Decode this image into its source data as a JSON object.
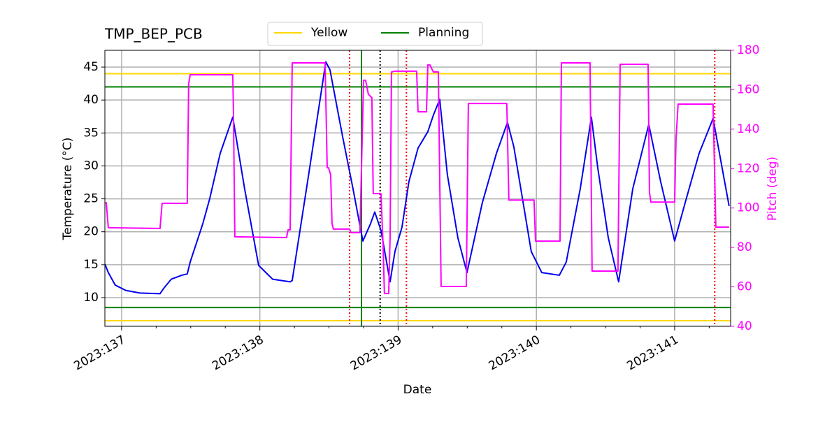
{
  "chart_data": {
    "type": "line",
    "title": "TMP_BEP_PCB",
    "xlabel": "Date",
    "ylabel": "Temperature (°C)",
    "y2label": "Pitch (deg)",
    "y2color": "#ff00ff",
    "xlim": [
      136.879,
      141.405
    ],
    "xticks": [
      {
        "value": 137,
        "label": "2023:137"
      },
      {
        "value": 138,
        "label": "2023:138"
      },
      {
        "value": 139,
        "label": "2023:139"
      },
      {
        "value": 140,
        "label": "2023:140"
      },
      {
        "value": 141,
        "label": "2023:141"
      }
    ],
    "xminorticks": [
      137.25,
      137.5,
      137.75,
      138.25,
      138.5,
      138.75,
      139.25,
      139.5,
      139.75,
      140.25,
      140.5,
      140.75,
      141.25
    ],
    "ylim": [
      5.65,
      47.55
    ],
    "yticks": [
      10,
      15,
      20,
      25,
      30,
      35,
      40,
      45
    ],
    "y2lim": [
      40,
      180
    ],
    "y2ticks": [
      40,
      60,
      80,
      100,
      120,
      140,
      160,
      180
    ],
    "grid": true,
    "hlines": [
      {
        "name": "Yellow",
        "color": "#ffd700",
        "values": [
          44,
          6.5
        ]
      },
      {
        "name": "Planning",
        "color": "#008000",
        "values": [
          42,
          8.5
        ]
      }
    ],
    "vlines": [
      {
        "color": "#ff0000",
        "style": "dotted",
        "values": [
          138.649,
          139.06,
          141.29
        ]
      },
      {
        "color": "#000000",
        "style": "dotted",
        "values": [
          138.87
        ]
      },
      {
        "color": "#008000",
        "style": "solid",
        "values": [
          138.735
        ]
      }
    ],
    "series": [
      {
        "color": "#0000ee",
        "axis": "y",
        "x": [
          136.879,
          136.904,
          136.954,
          137.03,
          137.131,
          137.278,
          137.308,
          137.359,
          137.435,
          137.475,
          137.496,
          137.587,
          137.637,
          137.713,
          137.804,
          137.89,
          137.991,
          138.092,
          138.219,
          138.234,
          138.345,
          138.477,
          138.507,
          138.598,
          138.674,
          138.745,
          138.8,
          138.831,
          138.876,
          138.942,
          138.977,
          139.028,
          139.078,
          139.144,
          139.215,
          139.255,
          139.301,
          139.356,
          139.432,
          139.498,
          139.609,
          139.711,
          139.791,
          139.837,
          139.963,
          140.039,
          140.166,
          140.216,
          140.317,
          140.398,
          140.444,
          140.52,
          140.595,
          140.697,
          140.813,
          140.899,
          141.0,
          141.076,
          141.177,
          141.278,
          141.394
        ],
        "values": [
          15.1,
          13.8,
          11.9,
          11.1,
          10.7,
          10.6,
          11.5,
          12.8,
          13.4,
          13.6,
          15.4,
          21.2,
          25.0,
          31.9,
          37.4,
          26.5,
          14.9,
          12.8,
          12.4,
          12.6,
          27.6,
          45.8,
          44.6,
          34.5,
          26.5,
          18.6,
          21.2,
          23.0,
          20.2,
          12.4,
          17.0,
          20.7,
          27.6,
          32.7,
          35.2,
          37.7,
          40.1,
          28.7,
          19.1,
          13.8,
          24.4,
          31.9,
          36.6,
          32.9,
          17.0,
          13.8,
          13.4,
          15.4,
          26.5,
          37.4,
          29.7,
          19.1,
          12.4,
          26.5,
          36.3,
          27.6,
          18.6,
          24.4,
          31.9,
          37.2,
          23.9
        ]
      },
      {
        "color": "#ff00ff",
        "axis": "y2",
        "x": [
          136.879,
          136.889,
          136.904,
          137.278,
          137.293,
          137.475,
          137.485,
          137.496,
          137.804,
          137.809,
          137.819,
          138.193,
          138.204,
          138.219,
          138.234,
          138.472,
          138.487,
          138.497,
          138.512,
          138.522,
          138.532,
          138.649,
          138.659,
          138.724,
          138.75,
          138.765,
          138.785,
          138.81,
          138.82,
          138.876,
          138.891,
          138.901,
          138.932,
          138.942,
          138.952,
          138.977,
          139.134,
          139.144,
          139.205,
          139.215,
          139.23,
          139.255,
          139.291,
          139.311,
          139.493,
          139.508,
          139.786,
          139.801,
          139.983,
          139.994,
          140.171,
          140.181,
          140.388,
          140.403,
          140.59,
          140.606,
          140.808,
          140.818,
          140.828,
          141.0,
          141.01,
          141.025,
          141.278,
          141.298,
          141.394
        ],
        "values": [
          102.7,
          102.7,
          90,
          89.6,
          102.4,
          102.4,
          163,
          167.6,
          167.6,
          148.8,
          85.4,
          85,
          88.9,
          88.9,
          173.6,
          173.6,
          120.4,
          120.4,
          116.9,
          92.1,
          89.3,
          89.3,
          87.5,
          87.5,
          164.8,
          164.8,
          157.7,
          155.9,
          107.3,
          107.3,
          81.5,
          56.6,
          56.6,
          85,
          169,
          169.4,
          169.4,
          148.8,
          148.8,
          172.6,
          172.6,
          169,
          169,
          60.2,
          60.2,
          153,
          153,
          104,
          104,
          83.2,
          83.2,
          173.6,
          173.6,
          68,
          68,
          172.9,
          172.9,
          108,
          103,
          103,
          134.6,
          152.7,
          152.7,
          90.3,
          90.3
        ]
      }
    ]
  }
}
